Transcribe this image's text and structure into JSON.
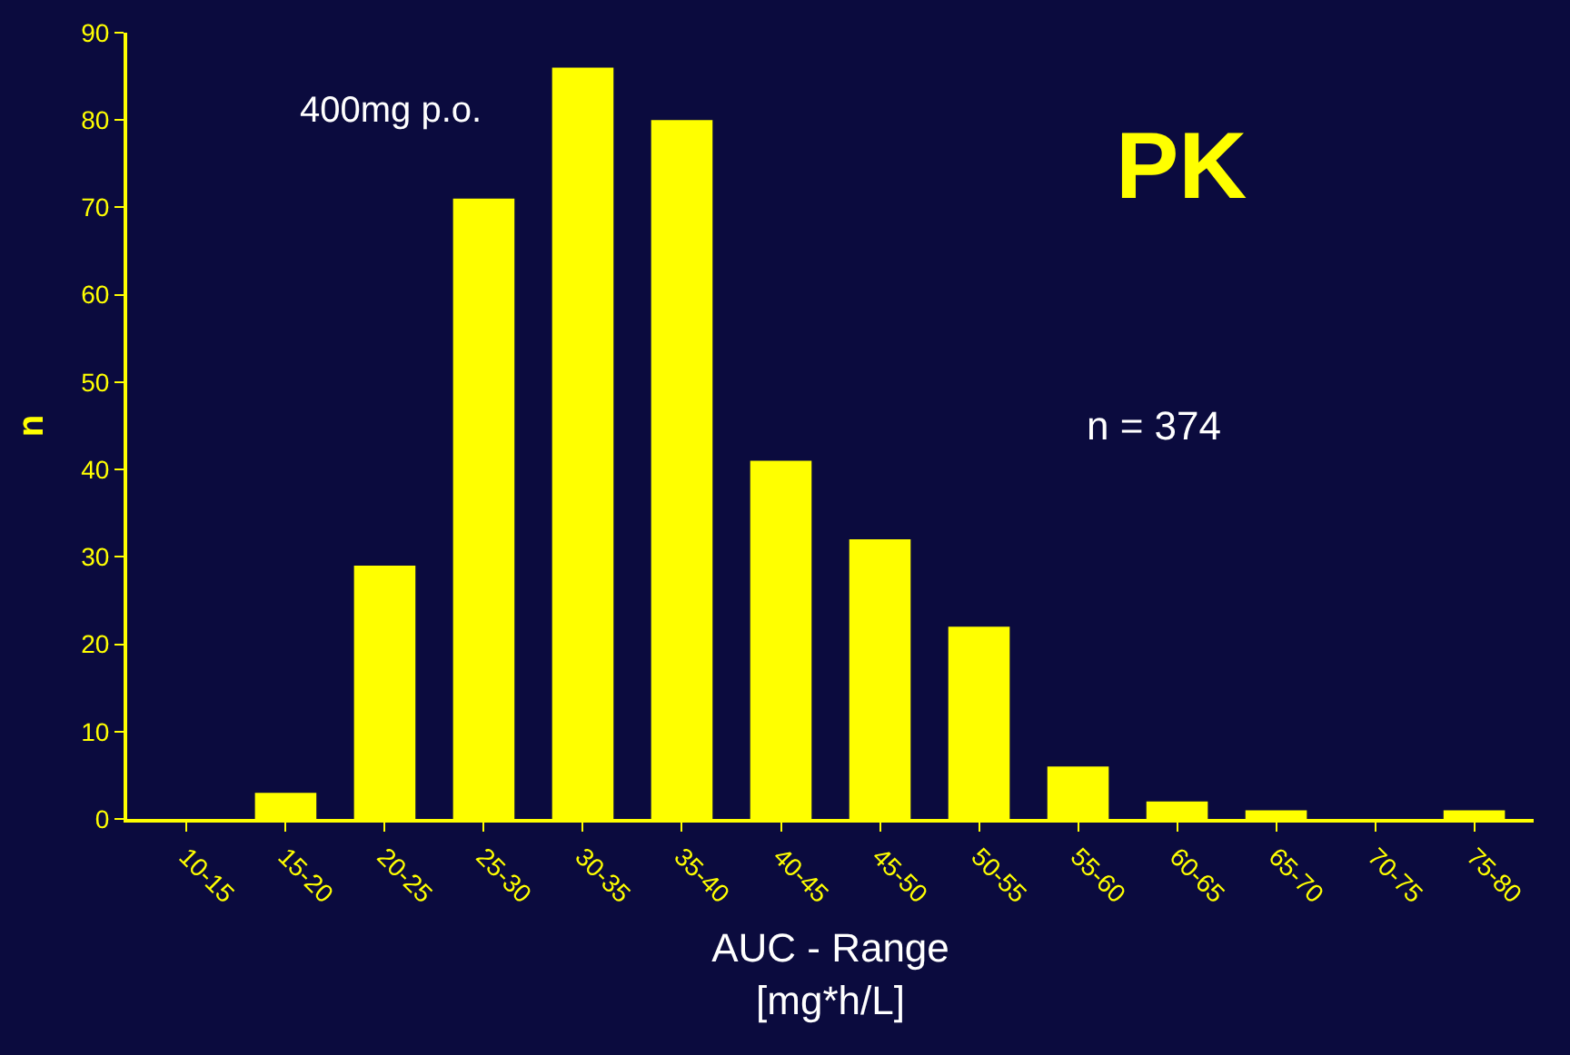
{
  "chart_data": {
    "type": "bar",
    "xlabel": "AUC - Range\n[mg*h/L]",
    "ylabel": "n",
    "categories": [
      "10-15",
      "15-20",
      "20-25",
      "25-30",
      "30-35",
      "35-40",
      "40-45",
      "45-50",
      "50-55",
      "55-60",
      "60-65",
      "65-70",
      "70-75",
      "75-80"
    ],
    "values": [
      0,
      3,
      29,
      71,
      86,
      80,
      41,
      32,
      22,
      6,
      2,
      1,
      0,
      1
    ],
    "color": "#ffff00",
    "ylim": [
      0,
      90
    ],
    "yticks": [
      0,
      10,
      20,
      30,
      40,
      50,
      60,
      70,
      80,
      90
    ],
    "grid": false,
    "annotations": [
      "400mg p.o.",
      "PK",
      "n = 374"
    ]
  }
}
